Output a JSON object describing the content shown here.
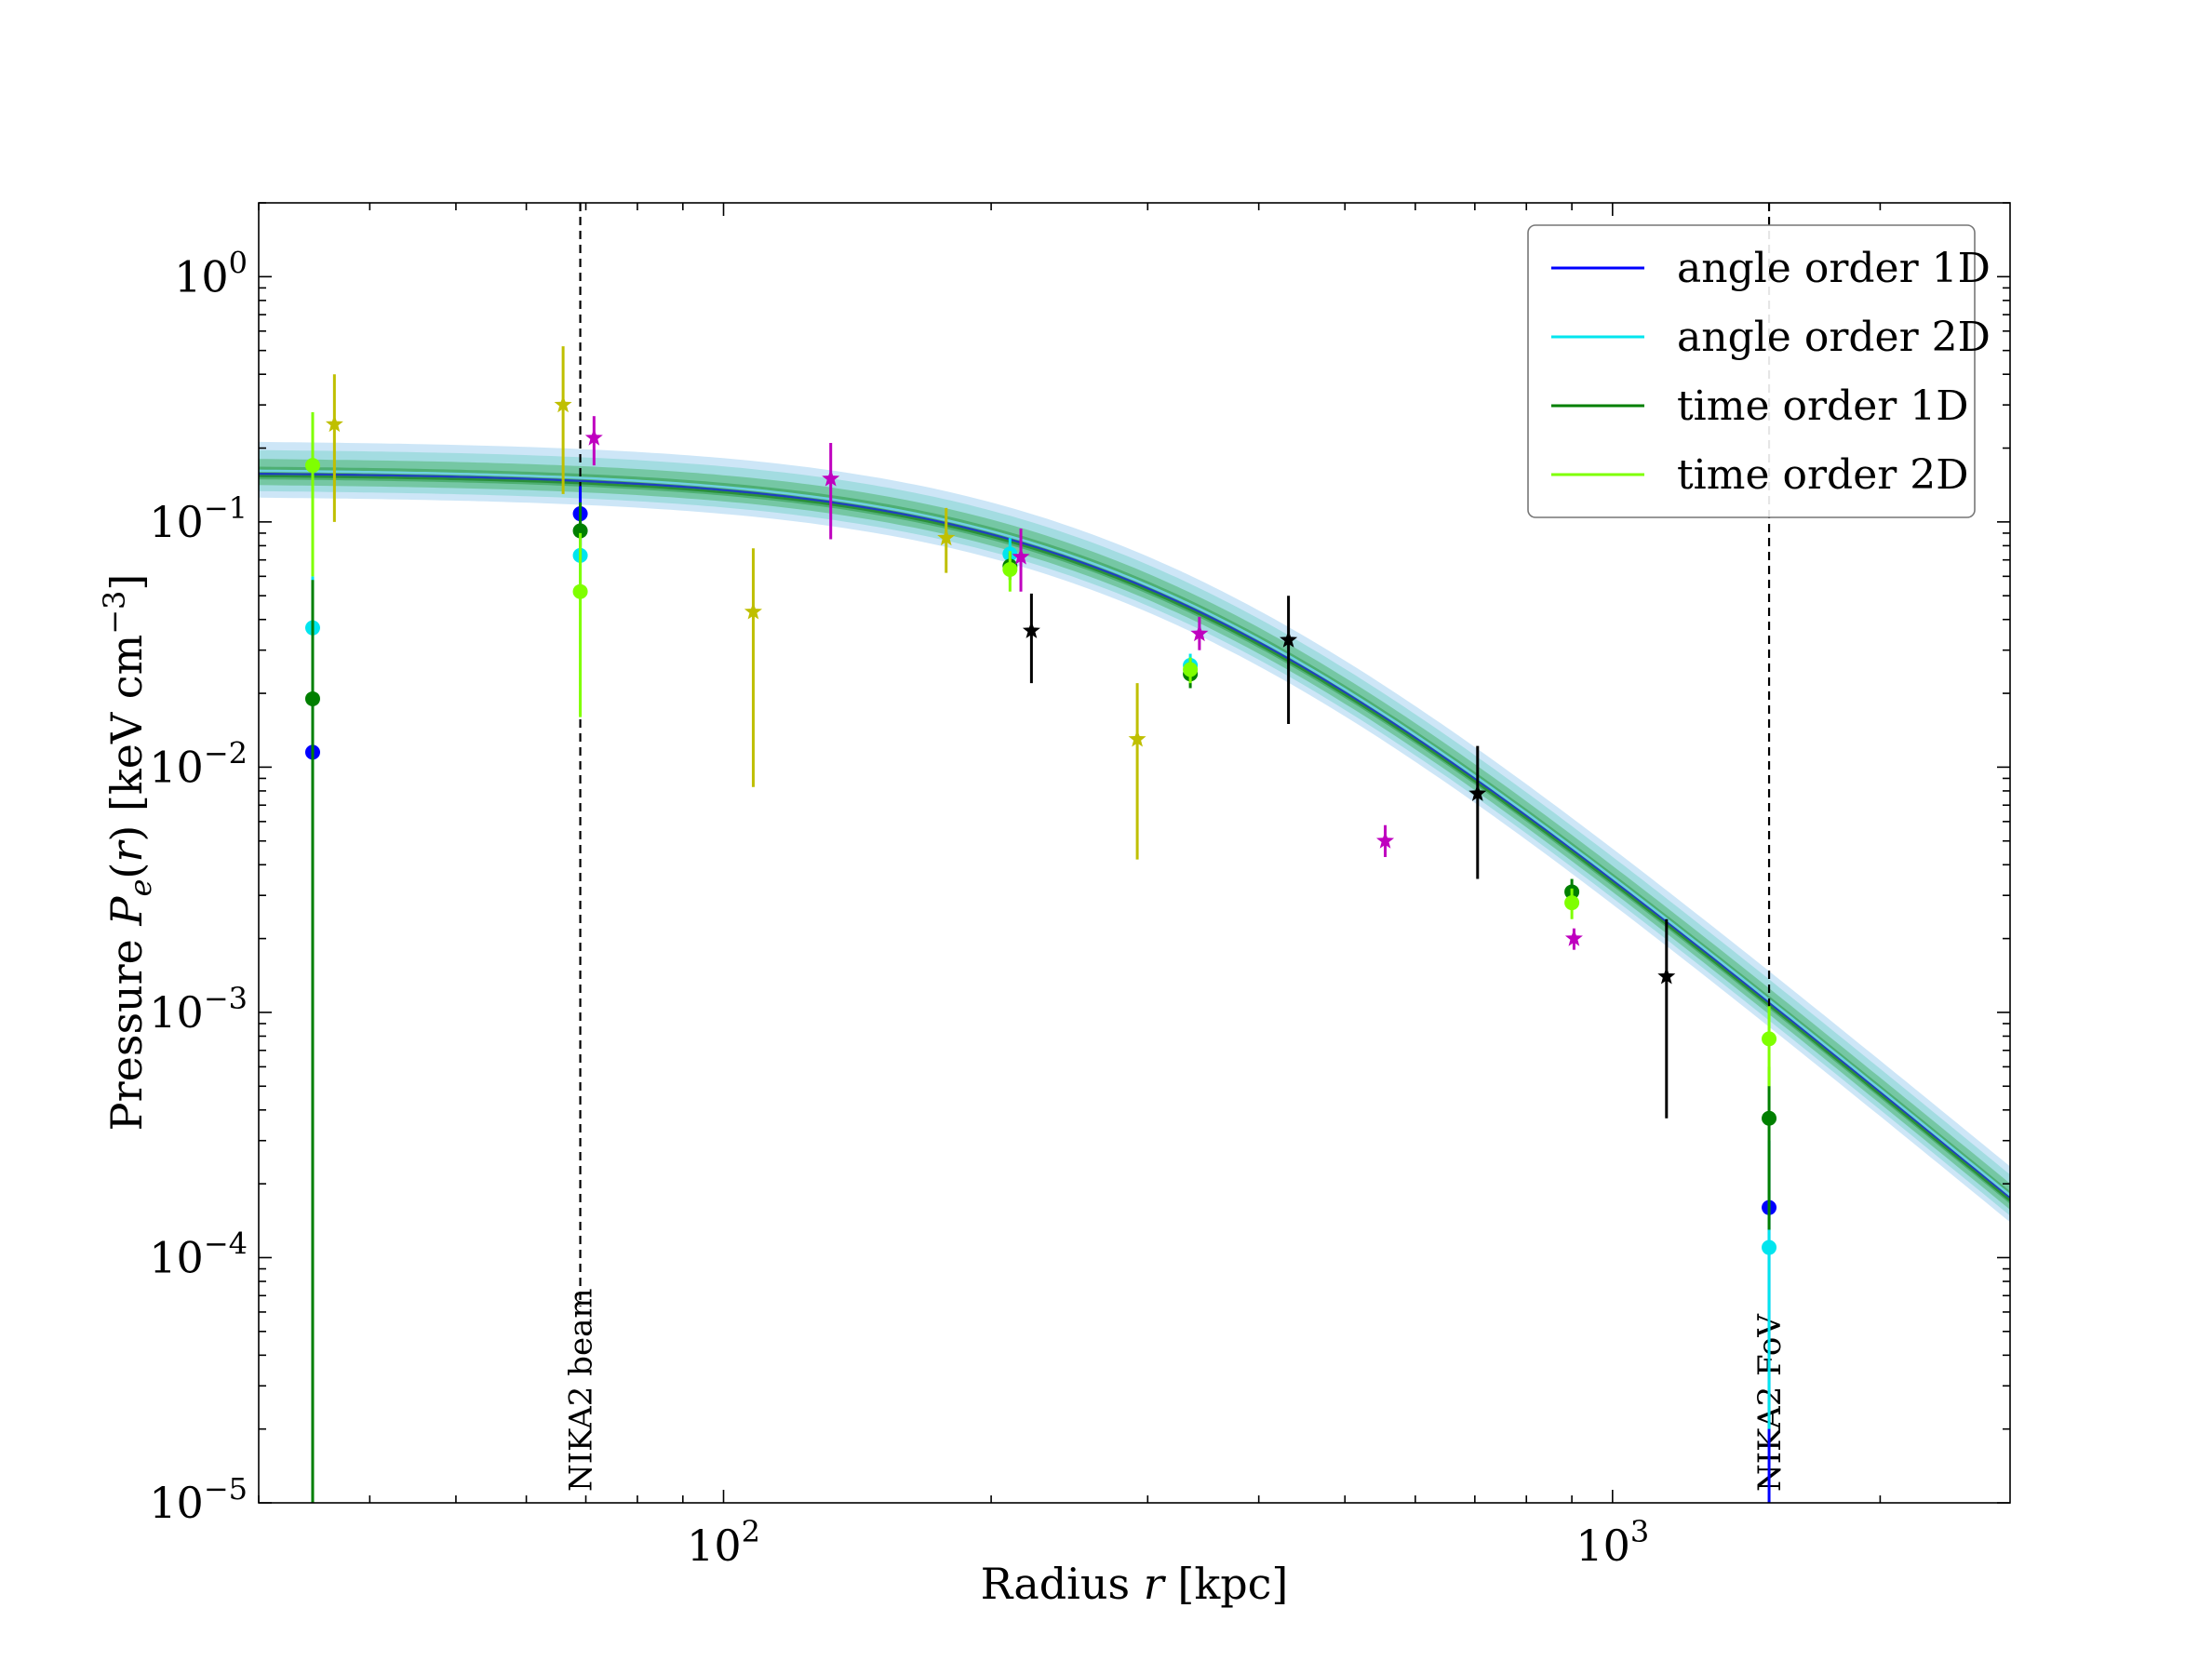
{
  "chart_data": {
    "type": "scatter",
    "title": "",
    "xlabel": "Radius r [kpc]",
    "ylabel": "Pressure Pe(r) [keV cm−3]",
    "xscale": "log",
    "yscale": "log",
    "xlim": [
      30,
      2800
    ],
    "ylim": [
      1e-05,
      2
    ],
    "x_ticks": [
      {
        "value": 100,
        "mant": "10",
        "exp": "2"
      },
      {
        "value": 1000,
        "mant": "10",
        "exp": "3"
      }
    ],
    "y_ticks": [
      {
        "value": 1,
        "mant": "10",
        "exp": "0"
      },
      {
        "value": 0.1,
        "mant": "10",
        "exp": "−1"
      },
      {
        "value": 0.01,
        "mant": "10",
        "exp": "−2"
      },
      {
        "value": 0.001,
        "mant": "10",
        "exp": "−3"
      },
      {
        "value": 0.0001,
        "mant": "10",
        "exp": "−4"
      },
      {
        "value": 1e-05,
        "mant": "10",
        "exp": "−5"
      }
    ],
    "vertical_lines": [
      {
        "x": 69,
        "label": "NIKA2 beam"
      },
      {
        "x": 1500,
        "label": "NIKA2 FoV"
      }
    ],
    "model": {
      "P0": 0.1595,
      "rc": 290,
      "slope": 1.5,
      "band_lo": 0.8,
      "band_hi": 1.35
    },
    "series": [
      {
        "name": "angle order 1D",
        "color": "#0000ff",
        "marker": "circle",
        "in_legend": true,
        "points": [
          {
            "x": 34.5,
            "y": 0.0115,
            "lo": 1e-05,
            "hi": 0.0115
          },
          {
            "x": 69,
            "y": 0.108,
            "lo": 0.08,
            "hi": 0.14
          },
          {
            "x": 1500,
            "y": 0.00016,
            "lo": 1e-05,
            "hi": 0.0003
          }
        ]
      },
      {
        "name": "angle order 2D",
        "color": "#00e5ee",
        "marker": "circle",
        "in_legend": true,
        "points": [
          {
            "x": 34.5,
            "y": 0.037,
            "lo": 1e-05,
            "hi": 0.06
          },
          {
            "x": 69,
            "y": 0.073,
            "lo": 0.05,
            "hi": 0.1
          },
          {
            "x": 210,
            "y": 0.074,
            "lo": 0.062,
            "hi": 0.086
          },
          {
            "x": 335,
            "y": 0.026,
            "lo": 0.023,
            "hi": 0.029
          },
          {
            "x": 1500,
            "y": 0.00011,
            "lo": 2e-05,
            "hi": 0.0003
          }
        ]
      },
      {
        "name": "time order 1D",
        "color": "#007f00",
        "marker": "circle",
        "in_legend": true,
        "points": [
          {
            "x": 34.5,
            "y": 0.019,
            "lo": 1e-05,
            "hi": 0.058
          },
          {
            "x": 69,
            "y": 0.092,
            "lo": 0.07,
            "hi": 0.12
          },
          {
            "x": 210,
            "y": 0.066,
            "lo": 0.058,
            "hi": 0.075
          },
          {
            "x": 335,
            "y": 0.024,
            "lo": 0.021,
            "hi": 0.027
          },
          {
            "x": 900,
            "y": 0.0031,
            "lo": 0.0027,
            "hi": 0.0035
          },
          {
            "x": 1500,
            "y": 0.00037,
            "lo": 0.00013,
            "hi": 0.0006
          }
        ]
      },
      {
        "name": "time order 2D",
        "color": "#7fff00",
        "marker": "circle",
        "in_legend": true,
        "points": [
          {
            "x": 34.5,
            "y": 0.17,
            "lo": 0.06,
            "hi": 0.28
          },
          {
            "x": 69,
            "y": 0.052,
            "lo": 0.016,
            "hi": 0.09
          },
          {
            "x": 210,
            "y": 0.064,
            "lo": 0.052,
            "hi": 0.076
          },
          {
            "x": 335,
            "y": 0.025,
            "lo": 0.022,
            "hi": 0.028
          },
          {
            "x": 900,
            "y": 0.0028,
            "lo": 0.0024,
            "hi": 0.0032
          },
          {
            "x": 1500,
            "y": 0.00078,
            "lo": 0.0005,
            "hi": 0.00106
          }
        ]
      },
      {
        "name": "yellow stars",
        "color": "#bfbf00",
        "marker": "star",
        "in_legend": false,
        "points": [
          {
            "x": 36.5,
            "y": 0.25,
            "lo": 0.1,
            "hi": 0.4
          },
          {
            "x": 66,
            "y": 0.3,
            "lo": 0.13,
            "hi": 0.52
          },
          {
            "x": 108,
            "y": 0.043,
            "lo": 0.0083,
            "hi": 0.078
          },
          {
            "x": 178,
            "y": 0.086,
            "lo": 0.062,
            "hi": 0.114
          },
          {
            "x": 292,
            "y": 0.013,
            "lo": 0.0042,
            "hi": 0.022
          }
        ]
      },
      {
        "name": "magenta stars",
        "color": "#bf00bf",
        "marker": "star",
        "in_legend": false,
        "points": [
          {
            "x": 71.5,
            "y": 0.22,
            "lo": 0.17,
            "hi": 0.27
          },
          {
            "x": 132,
            "y": 0.15,
            "lo": 0.085,
            "hi": 0.21
          },
          {
            "x": 216,
            "y": 0.072,
            "lo": 0.052,
            "hi": 0.094
          },
          {
            "x": 343,
            "y": 0.035,
            "lo": 0.03,
            "hi": 0.041
          },
          {
            "x": 555,
            "y": 0.005,
            "lo": 0.0043,
            "hi": 0.0058
          },
          {
            "x": 905,
            "y": 0.002,
            "lo": 0.0018,
            "hi": 0.0022
          }
        ]
      },
      {
        "name": "black stars",
        "color": "#000000",
        "marker": "star",
        "in_legend": false,
        "points": [
          {
            "x": 222,
            "y": 0.036,
            "lo": 0.022,
            "hi": 0.051
          },
          {
            "x": 432,
            "y": 0.033,
            "lo": 0.015,
            "hi": 0.05
          },
          {
            "x": 705,
            "y": 0.0078,
            "lo": 0.0035,
            "hi": 0.0122
          },
          {
            "x": 1150,
            "y": 0.0014,
            "lo": 0.00037,
            "hi": 0.0024
          }
        ]
      }
    ],
    "legend": {
      "position": "top-right",
      "entries": [
        "angle order 1D",
        "angle order 2D",
        "time order 1D",
        "time order 2D"
      ],
      "colors": [
        "#0000ff",
        "#00e5ee",
        "#007f00",
        "#7fff00"
      ]
    }
  }
}
